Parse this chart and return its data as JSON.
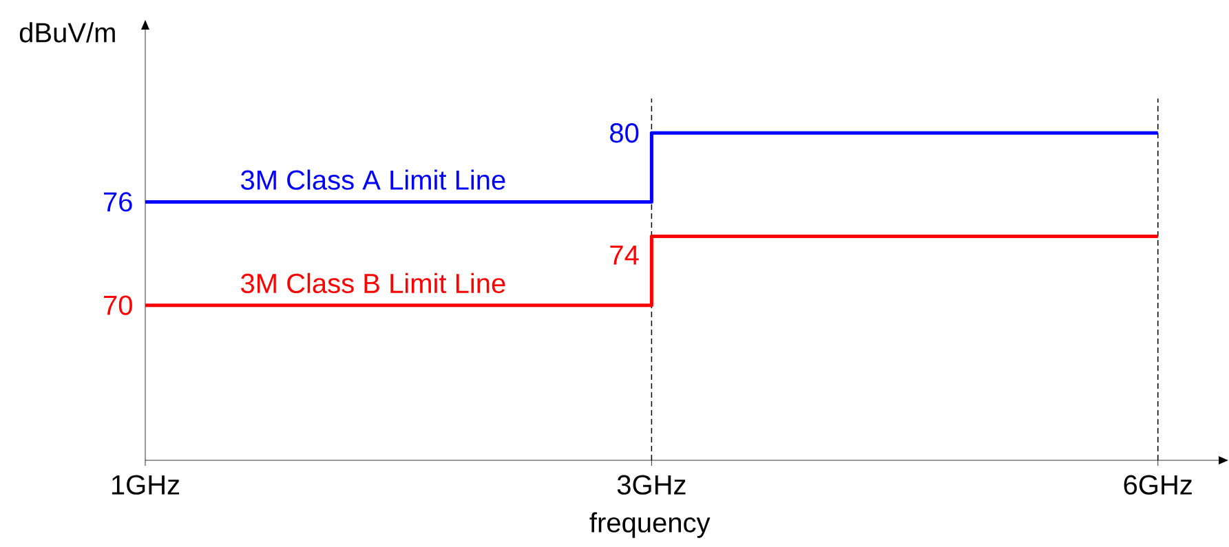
{
  "chart_data": {
    "type": "step",
    "categories": [
      "1GHz",
      "3GHz",
      "6GHz"
    ],
    "xlabel": "frequency",
    "ylabel": "dBuV/m",
    "ylim": [
      61,
      86
    ],
    "series": [
      {
        "name": "3M Class A Limit Line",
        "color": "#0000ff",
        "values": [
          76,
          80,
          80
        ],
        "value_labels": [
          "76",
          "80",
          null
        ]
      },
      {
        "name": "3M Class B Limit Line",
        "color": "#ff0000",
        "values": [
          70,
          74,
          74
        ],
        "value_labels": [
          "70",
          "74",
          null
        ]
      }
    ],
    "ref_lines": [
      {
        "axis": "x",
        "value": "3GHz",
        "color": "#000000",
        "line_style": "dashed"
      },
      {
        "axis": "x",
        "value": "6GHz",
        "color": "#000000",
        "line_style": "dashed"
      }
    ]
  }
}
